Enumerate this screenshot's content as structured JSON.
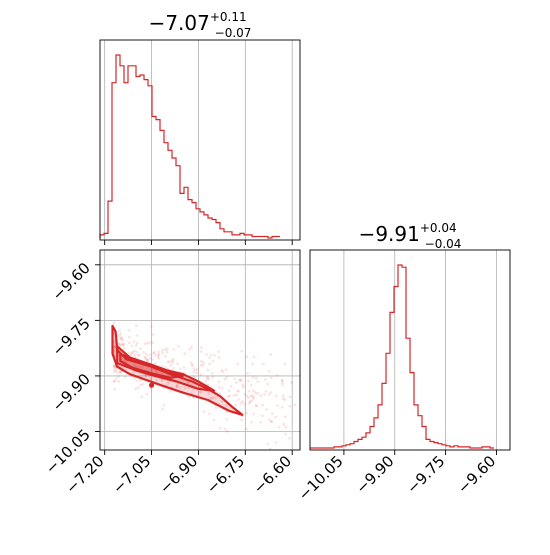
{
  "colors": {
    "series": "#d62728",
    "fill": "#d62728",
    "grid": "#b0b0b0"
  },
  "titles": {
    "p1": {
      "main": "−7.07",
      "sup": "+0.11",
      "sub": "−0.07"
    },
    "p2": {
      "main": "−9.91",
      "sup": "+0.04",
      "sub": "−0.04"
    }
  },
  "chart_data": [
    {
      "type": "histogram",
      "panel": "marginal-param-1",
      "x_range": [
        -7.215,
        -6.575
      ],
      "bin_edges_start": -7.215,
      "bin_width": 0.0128,
      "counts": [
        2,
        3,
        24,
        101,
        119,
        112,
        101,
        112,
        112,
        105,
        106,
        103,
        99,
        79,
        77,
        70,
        62,
        57,
        52,
        47,
        29,
        33,
        25,
        23,
        19,
        17,
        15,
        13,
        12,
        10,
        6,
        4,
        4,
        2,
        2,
        3,
        2,
        2,
        1,
        1,
        1,
        1,
        0,
        1,
        1
      ],
      "x_ticks": [
        -7.2,
        -7.05,
        -6.9,
        -6.75,
        -6.6
      ],
      "grid": true
    },
    {
      "type": "histogram",
      "panel": "marginal-param-2",
      "x_range": [
        -10.15,
        -9.56
      ],
      "bin_edges_start": -10.15,
      "bin_width": 0.0118,
      "counts": [
        0,
        0,
        0,
        0,
        0,
        0,
        1,
        1,
        2,
        3,
        4,
        6,
        8,
        10,
        14,
        20,
        28,
        40,
        60,
        88,
        126,
        150,
        170,
        168,
        102,
        70,
        40,
        30,
        20,
        8,
        6,
        5,
        4,
        3,
        2,
        1,
        2,
        1,
        1,
        1,
        0,
        0,
        0,
        1,
        1,
        0
      ],
      "x_ticks": [
        -10.05,
        -9.9,
        -9.75,
        -9.6
      ],
      "x_tick_labels": [
        "−10.05",
        "−9.90",
        "−9.75",
        "−9.60"
      ],
      "grid": true
    },
    {
      "type": "scatter",
      "panel": "joint-2d",
      "x_range": [
        -7.215,
        -6.575
      ],
      "y_range": [
        -10.1,
        -9.56
      ],
      "x_ticks": [
        -7.2,
        -7.05,
        -6.9,
        -6.75,
        -6.6
      ],
      "x_tick_labels": [
        "−7.20",
        "−7.05",
        "−6.90",
        "−6.75",
        "−6.60"
      ],
      "y_ticks": [
        -9.6,
        -9.75,
        -9.9,
        -10.05
      ],
      "y_tick_labels": [
        "−9.60",
        "−9.75",
        "−9.90",
        "−10.05"
      ],
      "grid": true,
      "contours": [
        {
          "level": "outer",
          "points": [
            [
              -7.175,
              -9.765
            ],
            [
              -7.165,
              -9.78
            ],
            [
              -7.16,
              -9.83
            ],
            [
              -7.13,
              -9.855
            ],
            [
              -7.05,
              -9.875
            ],
            [
              -6.99,
              -9.895
            ],
            [
              -6.92,
              -9.915
            ],
            [
              -6.87,
              -9.935
            ],
            [
              -6.83,
              -9.955
            ],
            [
              -6.79,
              -9.985
            ],
            [
              -6.76,
              -10.005
            ],
            [
              -6.8,
              -9.995
            ],
            [
              -6.87,
              -9.965
            ],
            [
              -6.95,
              -9.945
            ],
            [
              -7.02,
              -9.925
            ],
            [
              -7.07,
              -9.91
            ],
            [
              -7.12,
              -9.895
            ],
            [
              -7.16,
              -9.875
            ],
            [
              -7.175,
              -9.84
            ],
            [
              -7.175,
              -9.765
            ]
          ]
        },
        {
          "level": "mid",
          "points": [
            [
              -7.16,
              -9.82
            ],
            [
              -7.12,
              -9.85
            ],
            [
              -7.05,
              -9.87
            ],
            [
              -7.0,
              -9.885
            ],
            [
              -6.95,
              -9.895
            ],
            [
              -6.9,
              -9.915
            ],
            [
              -6.85,
              -9.94
            ],
            [
              -6.9,
              -9.935
            ],
            [
              -6.97,
              -9.915
            ],
            [
              -7.04,
              -9.9
            ],
            [
              -7.1,
              -9.885
            ],
            [
              -7.16,
              -9.865
            ],
            [
              -7.16,
              -9.82
            ]
          ]
        },
        {
          "level": "inner",
          "points": [
            [
              -7.15,
              -9.84
            ],
            [
              -7.1,
              -9.86
            ],
            [
              -7.04,
              -9.875
            ],
            [
              -6.99,
              -9.89
            ],
            [
              -6.95,
              -9.9
            ],
            [
              -6.99,
              -9.905
            ],
            [
              -7.05,
              -9.893
            ],
            [
              -7.11,
              -9.878
            ],
            [
              -7.15,
              -9.86
            ],
            [
              -7.15,
              -9.84
            ]
          ]
        }
      ]
    }
  ]
}
